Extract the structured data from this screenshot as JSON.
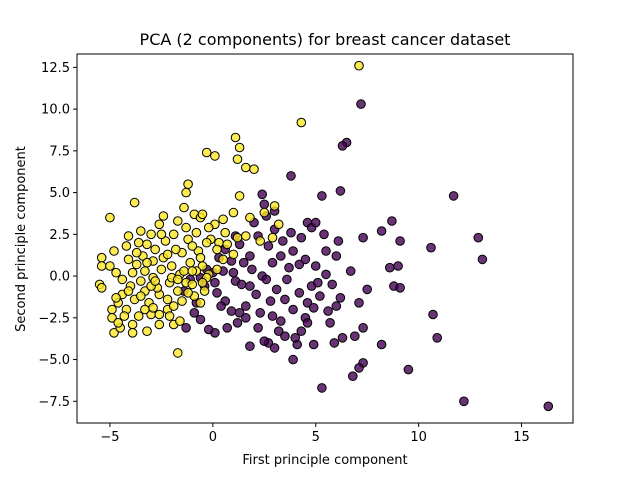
{
  "chart_data": {
    "type": "scatter",
    "title": "PCA (2 components) for breast cancer dataset",
    "xlabel": "First principle component",
    "ylabel": "Second principle component",
    "xlim": [
      -6.6,
      17.5
    ],
    "ylim": [
      -8.8,
      13.3
    ],
    "xticks": [
      -5,
      0,
      5,
      10,
      15
    ],
    "yticks": [
      -7.5,
      -5.0,
      -2.5,
      0.0,
      2.5,
      5.0,
      7.5,
      10.0,
      12.5
    ],
    "xtick_labels": [
      "−5",
      "0",
      "5",
      "10",
      "15"
    ],
    "ytick_labels": [
      "−7.5",
      "−5.0",
      "−2.5",
      "0.0",
      "2.5",
      "5.0",
      "7.5",
      "10.0",
      "12.5"
    ],
    "grid": false,
    "series": [
      {
        "color": "#440154",
        "points": [
          [
            16.3,
            -7.8
          ],
          [
            12.2,
            -7.5
          ],
          [
            9.5,
            -5.6
          ],
          [
            5.3,
            -6.7
          ],
          [
            6.8,
            -6.0
          ],
          [
            7.3,
            -5.2
          ],
          [
            7.1,
            -5.5
          ],
          [
            6.9,
            -3.6
          ],
          [
            8.2,
            -4.1
          ],
          [
            10.9,
            -3.7
          ],
          [
            10.7,
            -2.3
          ],
          [
            11.7,
            4.8
          ],
          [
            12.9,
            2.3
          ],
          [
            13.1,
            1.0
          ],
          [
            10.6,
            1.7
          ],
          [
            9.1,
            2.1
          ],
          [
            8.7,
            3.3
          ],
          [
            8.2,
            2.7
          ],
          [
            7.3,
            2.3
          ],
          [
            6.2,
            5.1
          ],
          [
            5.3,
            4.8
          ],
          [
            4.6,
            3.2
          ],
          [
            3.8,
            6.0
          ],
          [
            6.5,
            8.0
          ],
          [
            6.3,
            7.8
          ],
          [
            7.2,
            10.3
          ],
          [
            9.0,
            0.6
          ],
          [
            8.8,
            -0.6
          ],
          [
            9.1,
            -0.7
          ],
          [
            8.6,
            0.5
          ],
          [
            7.5,
            -0.8
          ],
          [
            7.3,
            -3.1
          ],
          [
            7.1,
            -1.6
          ],
          [
            6.2,
            -1.3
          ],
          [
            5.8,
            -0.5
          ],
          [
            6.7,
            0.3
          ],
          [
            6.0,
            1.2
          ],
          [
            6.1,
            2.1
          ],
          [
            5.5,
            1.5
          ],
          [
            5.0,
            0.6
          ],
          [
            4.8,
            -0.6
          ],
          [
            4.6,
            -1.6
          ],
          [
            4.5,
            -2.5
          ],
          [
            4.9,
            -4.1
          ],
          [
            4.1,
            -4.1
          ],
          [
            3.5,
            -3.6
          ],
          [
            3.2,
            -3.3
          ],
          [
            2.7,
            -4.0
          ],
          [
            2.5,
            -3.9
          ],
          [
            1.8,
            -4.2
          ],
          [
            1.2,
            -2.8
          ],
          [
            0.9,
            -2.1
          ],
          [
            0.6,
            -1.5
          ],
          [
            0.2,
            -1.0
          ],
          [
            0.1,
            -0.4
          ],
          [
            0.5,
            0.3
          ],
          [
            0.9,
            0.9
          ],
          [
            1.1,
            -0.3
          ],
          [
            1.3,
            1.9
          ],
          [
            1.8,
            1.2
          ],
          [
            2.2,
            2.4
          ],
          [
            2.0,
            3.2
          ],
          [
            2.6,
            3.6
          ],
          [
            2.5,
            4.3
          ],
          [
            2.4,
            4.9
          ],
          [
            3.0,
            3.9
          ],
          [
            3.4,
            2.1
          ],
          [
            3.9,
            1.5
          ],
          [
            4.2,
            0.7
          ],
          [
            3.6,
            -0.2
          ],
          [
            3.1,
            -0.8
          ],
          [
            2.8,
            -1.5
          ],
          [
            2.3,
            -2.2
          ],
          [
            1.6,
            -2.5
          ],
          [
            1.3,
            -2.2
          ],
          [
            0.7,
            -3.1
          ],
          [
            0.1,
            -3.4
          ],
          [
            -0.2,
            -3.2
          ],
          [
            -0.6,
            -2.6
          ],
          [
            -0.8,
            -1.6
          ],
          [
            -0.4,
            -0.6
          ],
          [
            -1.1,
            -0.2
          ],
          [
            -1.4,
            -0.9
          ],
          [
            -0.3,
            0.4
          ],
          [
            0.3,
            1.1
          ],
          [
            0.6,
            1.6
          ],
          [
            1.5,
            0.8
          ],
          [
            1.9,
            0.4
          ],
          [
            2.4,
            0.0
          ],
          [
            2.9,
            0.8
          ],
          [
            3.3,
            1.2
          ],
          [
            3.8,
            2.6
          ],
          [
            4.3,
            2.3
          ],
          [
            4.8,
            2.9
          ],
          [
            5.0,
            3.2
          ],
          [
            5.4,
            2.5
          ],
          [
            3.9,
            -2.0
          ],
          [
            3.3,
            -2.7
          ],
          [
            2.9,
            -2.4
          ],
          [
            2.1,
            -1.1
          ],
          [
            1.6,
            -1.8
          ],
          [
            4.3,
            -3.3
          ],
          [
            5.7,
            -2.8
          ],
          [
            6.3,
            -3.7
          ],
          [
            5.9,
            -4.0
          ],
          [
            3.9,
            -5.0
          ],
          [
            4.0,
            -3.7
          ],
          [
            3.5,
            -1.4
          ],
          [
            4.9,
            -1.9
          ],
          [
            5.2,
            -1.2
          ],
          [
            5.6,
            -2.1
          ],
          [
            6.0,
            -1.8
          ],
          [
            2.6,
            -0.2
          ],
          [
            1.8,
            -0.6
          ],
          [
            1.0,
            0.2
          ],
          [
            0.4,
            -1.8
          ],
          [
            -0.9,
            -2.2
          ],
          [
            -1.3,
            -3.1
          ],
          [
            2.2,
            -3.1
          ],
          [
            3.0,
            -4.3
          ],
          [
            4.2,
            -1.0
          ],
          [
            3.7,
            0.5
          ],
          [
            4.5,
            1.0
          ],
          [
            5.5,
            0.1
          ],
          [
            3.0,
            2.8
          ],
          [
            2.7,
            1.8
          ],
          [
            1.1,
            2.4
          ],
          [
            1.4,
            -0.5
          ],
          [
            0.0,
            0.2
          ],
          [
            -0.6,
            -0.1
          ],
          [
            4.6,
            -2.8
          ],
          [
            5.1,
            -0.4
          ]
        ]
      },
      {
        "color": "#fde725",
        "points": [
          [
            7.1,
            12.6
          ],
          [
            4.3,
            9.2
          ],
          [
            1.1,
            8.3
          ],
          [
            1.3,
            7.7
          ],
          [
            1.2,
            7.0
          ],
          [
            -0.3,
            7.4
          ],
          [
            0.1,
            7.2
          ],
          [
            1.6,
            6.5
          ],
          [
            2.0,
            6.4
          ],
          [
            -1.2,
            5.5
          ],
          [
            -1.3,
            5.0
          ],
          [
            1.3,
            4.8
          ],
          [
            -3.8,
            4.4
          ],
          [
            -5.0,
            3.5
          ],
          [
            -3.5,
            2.7
          ],
          [
            -4.1,
            2.4
          ],
          [
            -5.4,
            1.1
          ],
          [
            -5.4,
            0.6
          ],
          [
            -5.0,
            0.6
          ],
          [
            -4.8,
            1.5
          ],
          [
            -5.5,
            -0.5
          ],
          [
            -5.4,
            -0.7
          ],
          [
            -4.9,
            -2.0
          ],
          [
            -4.9,
            -2.5
          ],
          [
            -4.8,
            -3.4
          ],
          [
            -4.5,
            -3.1
          ],
          [
            -4.6,
            -2.8
          ],
          [
            -3.9,
            -2.9
          ],
          [
            -3.2,
            -3.3
          ],
          [
            -3.0,
            -2.3
          ],
          [
            -1.7,
            -4.6
          ],
          [
            -1.9,
            -2.9
          ],
          [
            -2.2,
            -2.0
          ],
          [
            -1.5,
            -1.5
          ],
          [
            -0.9,
            -1.2
          ],
          [
            -0.4,
            -0.9
          ],
          [
            -0.2,
            0.1
          ],
          [
            -0.5,
            0.6
          ],
          [
            -1.1,
            0.8
          ],
          [
            -0.7,
            1.5
          ],
          [
            -0.1,
            2.2
          ],
          [
            0.3,
            2.0
          ],
          [
            -0.9,
            3.7
          ],
          [
            -0.6,
            3.5
          ],
          [
            -0.5,
            3.7
          ],
          [
            -1.7,
            3.3
          ],
          [
            -1.4,
            4.1
          ],
          [
            -2.4,
            3.6
          ],
          [
            -2.6,
            3.1
          ],
          [
            -3.0,
            2.5
          ],
          [
            -3.6,
            2.0
          ],
          [
            -4.1,
            1.0
          ],
          [
            -3.7,
            0.7
          ],
          [
            -3.3,
            0.3
          ],
          [
            -3.5,
            -0.3
          ],
          [
            -4.0,
            -0.6
          ],
          [
            -4.4,
            -1.1
          ],
          [
            -3.8,
            -1.4
          ],
          [
            -3.1,
            -1.6
          ],
          [
            -2.6,
            -1.1
          ],
          [
            -2.1,
            -0.4
          ],
          [
            -1.6,
            0.1
          ],
          [
            -2.0,
            0.6
          ],
          [
            -2.4,
            1.1
          ],
          [
            -2.8,
            1.6
          ],
          [
            -3.2,
            1.9
          ],
          [
            -2.3,
            2.1
          ],
          [
            -1.9,
            2.5
          ],
          [
            -1.2,
            2.2
          ],
          [
            -1.5,
            1.4
          ],
          [
            -0.8,
            0.3
          ],
          [
            -1.3,
            -0.4
          ],
          [
            -1.7,
            -0.9
          ],
          [
            -2.6,
            -2.3
          ],
          [
            -3.3,
            -2.0
          ],
          [
            -3.6,
            -2.4
          ],
          [
            -4.2,
            -2.0
          ],
          [
            -4.4,
            -0.2
          ],
          [
            -4.7,
            0.2
          ],
          [
            -4.2,
            1.8
          ],
          [
            -3.4,
            1.2
          ],
          [
            -2.9,
            0.9
          ],
          [
            -2.5,
            0.4
          ],
          [
            -2.9,
            -0.1
          ],
          [
            -3.3,
            -0.9
          ],
          [
            -2.7,
            -0.7
          ],
          [
            -2.2,
            -1.4
          ],
          [
            -1.9,
            -1.8
          ],
          [
            -1.0,
            -0.5
          ],
          [
            -0.3,
            -0.1
          ],
          [
            0.2,
            0.4
          ],
          [
            0.5,
            1.0
          ],
          [
            1.0,
            1.3
          ],
          [
            0.7,
            1.9
          ],
          [
            1.2,
            2.3
          ],
          [
            1.6,
            2.4
          ],
          [
            2.3,
            2.1
          ],
          [
            2.9,
            2.3
          ],
          [
            3.2,
            3.1
          ],
          [
            3.0,
            4.2
          ],
          [
            2.5,
            3.8
          ],
          [
            1.0,
            3.8
          ],
          [
            0.5,
            3.4
          ],
          [
            0.1,
            3.1
          ],
          [
            -0.2,
            2.9
          ],
          [
            -0.8,
            2.6
          ],
          [
            -1.0,
            1.8
          ],
          [
            -1.8,
            1.6
          ],
          [
            -2.2,
            1.3
          ],
          [
            -3.0,
            -0.6
          ],
          [
            -3.5,
            -1.2
          ],
          [
            -4.6,
            -1.6
          ],
          [
            -4.3,
            -2.4
          ],
          [
            -3.9,
            -3.4
          ],
          [
            -2.6,
            -2.9
          ],
          [
            -1.6,
            -2.7
          ],
          [
            -2.8,
            -0.3
          ],
          [
            -2.0,
            -0.1
          ],
          [
            -1.4,
            0.3
          ],
          [
            -0.5,
            -0.4
          ],
          [
            -1.2,
            -1.0
          ],
          [
            -1.7,
            -0.2
          ],
          [
            -0.6,
            1.1
          ],
          [
            0.2,
            1.6
          ],
          [
            -0.3,
            2.0
          ],
          [
            -3.9,
            0.2
          ],
          [
            -4.7,
            -1.3
          ],
          [
            -3.2,
            0.8
          ],
          [
            -2.1,
            -2.4
          ],
          [
            -1.0,
            0.3
          ],
          [
            -0.6,
            -1.6
          ],
          [
            -2.5,
            2.5
          ],
          [
            -1.3,
            2.9
          ],
          [
            -3.7,
            1.4
          ],
          [
            -4.1,
            -0.9
          ],
          [
            -2.9,
            -1.9
          ],
          [
            0.6,
            2.6
          ],
          [
            1.8,
            3.5
          ]
        ]
      }
    ]
  }
}
